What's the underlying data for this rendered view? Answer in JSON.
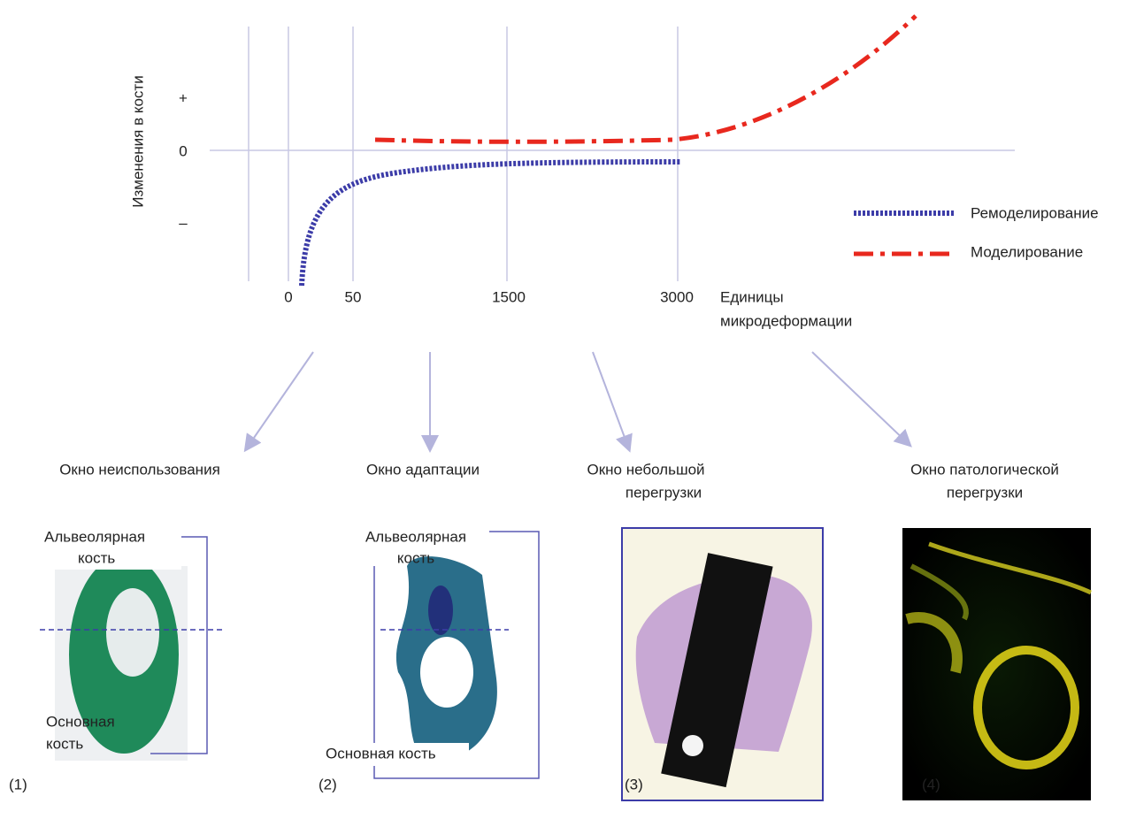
{
  "chart": {
    "axis_title": "Изменения в кости",
    "y_labels": [
      "+",
      "0",
      "–"
    ],
    "x_labels": [
      "0",
      "50",
      "1500",
      "3000"
    ],
    "x_axis_title": [
      "Единицы",
      "микродеформации"
    ],
    "legend": [
      "Ремоделирование",
      "Моделирование"
    ]
  },
  "windows": [
    {
      "title": [
        "Окно неиспользования"
      ]
    },
    {
      "title": [
        "Окно адаптации"
      ]
    },
    {
      "title": [
        "Окно небольшой",
        "перегрузки"
      ]
    },
    {
      "title": [
        "Окно патологической",
        "перегрузки"
      ]
    }
  ],
  "panels": [
    {
      "number": "(1)",
      "labels": [
        "Альвеолярная",
        "кость",
        "Основная",
        "кость"
      ]
    },
    {
      "number": "(2)",
      "labels": [
        "Альвеолярная",
        "кость",
        "Основная кость"
      ]
    },
    {
      "number": "(3)"
    },
    {
      "number": "(4)"
    }
  ]
}
